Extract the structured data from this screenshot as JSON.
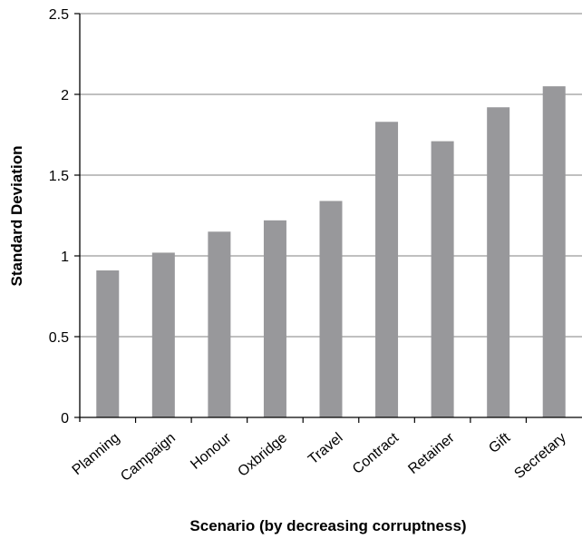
{
  "chart_data": {
    "type": "bar",
    "title": "",
    "xlabel": "Scenario (by decreasing corruptness)",
    "ylabel": "Standard Deviation",
    "categories": [
      "Planning",
      "Campaign",
      "Honour",
      "Oxbridge",
      "Travel",
      "Contract",
      "Retainer",
      "Gift",
      "Secretary"
    ],
    "values": [
      0.91,
      1.02,
      1.15,
      1.22,
      1.34,
      1.83,
      1.71,
      1.92,
      2.05
    ],
    "ylim": [
      0,
      2.5
    ],
    "yticks": [
      "0",
      "0.5",
      "1",
      "1.5",
      "2",
      "2.5"
    ],
    "grid": true,
    "legend": "none",
    "colors": {
      "bar": "#98989b",
      "grid": "#9a9a9a",
      "axis": "#000000"
    }
  }
}
